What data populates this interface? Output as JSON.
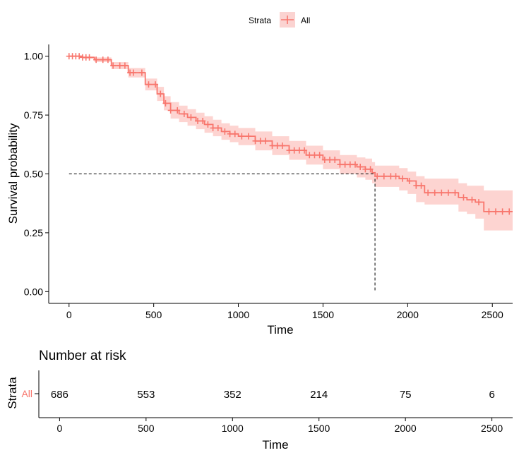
{
  "legend": {
    "title": "Strata",
    "label": "All",
    "color": "#F8766D",
    "band_color": "#FBB7B3"
  },
  "chart_data": [
    {
      "type": "line",
      "subtype": "kaplan-meier",
      "xlabel": "Time",
      "ylabel": "Survival probability",
      "xlim": [
        -120,
        2620
      ],
      "ylim": [
        -0.05,
        1.05
      ],
      "x_ticks": [
        0,
        500,
        1000,
        1500,
        2000,
        2500
      ],
      "y_ticks": [
        0.0,
        0.25,
        0.5,
        0.75,
        1.0
      ],
      "y_tick_labels": [
        "0.00",
        "0.25",
        "0.50",
        "0.75",
        "1.00"
      ],
      "legend_position": "top",
      "grid": false,
      "median_survival": 1807,
      "median_line_y": 0.5,
      "series": [
        {
          "name": "All",
          "x": [
            0,
            80,
            150,
            250,
            350,
            450,
            520,
            560,
            600,
            650,
            700,
            750,
            800,
            850,
            900,
            950,
            1000,
            1100,
            1200,
            1300,
            1400,
            1500,
            1600,
            1700,
            1750,
            1790,
            1807,
            1900,
            1950,
            2000,
            2050,
            2100,
            2200,
            2300,
            2350,
            2400,
            2450,
            2620
          ],
          "y": [
            1.0,
            0.995,
            0.985,
            0.96,
            0.93,
            0.88,
            0.84,
            0.8,
            0.77,
            0.755,
            0.74,
            0.725,
            0.71,
            0.695,
            0.68,
            0.67,
            0.66,
            0.64,
            0.62,
            0.6,
            0.58,
            0.56,
            0.54,
            0.53,
            0.52,
            0.505,
            0.49,
            0.49,
            0.48,
            0.47,
            0.45,
            0.42,
            0.42,
            0.4,
            0.39,
            0.38,
            0.34,
            0.34
          ],
          "lower": [
            1.0,
            0.99,
            0.975,
            0.945,
            0.91,
            0.855,
            0.81,
            0.77,
            0.735,
            0.72,
            0.705,
            0.69,
            0.675,
            0.66,
            0.645,
            0.635,
            0.622,
            0.6,
            0.58,
            0.56,
            0.54,
            0.52,
            0.5,
            0.485,
            0.475,
            0.46,
            0.445,
            0.445,
            0.43,
            0.415,
            0.38,
            0.37,
            0.37,
            0.34,
            0.33,
            0.31,
            0.26,
            0.26
          ],
          "upper": [
            1.0,
            1.0,
            0.995,
            0.975,
            0.95,
            0.905,
            0.87,
            0.83,
            0.805,
            0.79,
            0.775,
            0.76,
            0.745,
            0.73,
            0.715,
            0.705,
            0.695,
            0.68,
            0.66,
            0.64,
            0.62,
            0.6,
            0.58,
            0.57,
            0.565,
            0.55,
            0.535,
            0.535,
            0.525,
            0.51,
            0.49,
            0.48,
            0.48,
            0.46,
            0.45,
            0.45,
            0.43,
            0.43
          ],
          "censor_times": [
            0,
            20,
            40,
            60,
            80,
            100,
            120,
            160,
            200,
            230,
            260,
            300,
            330,
            360,
            380,
            430,
            470,
            510,
            540,
            570,
            600,
            640,
            680,
            720,
            760,
            790,
            820,
            850,
            880,
            920,
            950,
            980,
            1020,
            1060,
            1100,
            1130,
            1160,
            1200,
            1230,
            1260,
            1300,
            1330,
            1360,
            1390,
            1420,
            1450,
            1480,
            1510,
            1540,
            1570,
            1600,
            1630,
            1660,
            1690,
            1720,
            1750,
            1780,
            1820,
            1860,
            1900,
            1930,
            1970,
            2010,
            2050,
            2080,
            2120,
            2160,
            2200,
            2240,
            2280,
            2330,
            2380,
            2420,
            2480,
            2520,
            2560,
            2600
          ]
        }
      ]
    },
    {
      "type": "table",
      "title": "Number at risk",
      "ylabel": "Strata",
      "xlabel": "Time",
      "xlim": [
        -120,
        2620
      ],
      "x_ticks": [
        0,
        500,
        1000,
        1500,
        2000,
        2500
      ],
      "row_label": "All",
      "times": [
        0,
        500,
        1000,
        1500,
        2000,
        2500
      ],
      "values": [
        686,
        553,
        352,
        214,
        75,
        6
      ]
    }
  ]
}
